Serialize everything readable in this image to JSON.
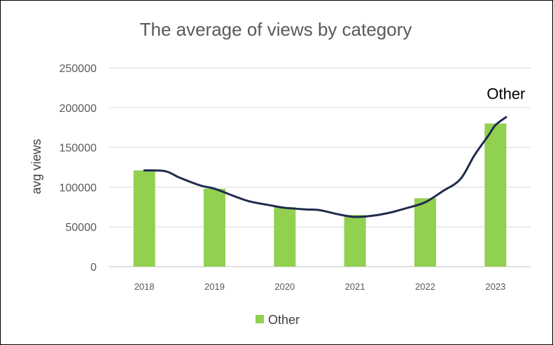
{
  "chart_data": {
    "type": "bar",
    "title": "The average of views by category",
    "ylabel": "avg views",
    "xlabel": "",
    "categories": [
      "2018",
      "2019",
      "2020",
      "2021",
      "2022",
      "2023"
    ],
    "series": [
      {
        "name": "Other",
        "values": [
          121000,
          98000,
          75000,
          65000,
          86000,
          180000
        ],
        "color": "#92D050"
      }
    ],
    "trend_line": {
      "color": "#1F2A4D",
      "x": [
        2018.0,
        2018.3,
        2018.5,
        2018.8,
        2019.0,
        2019.3,
        2019.5,
        2019.8,
        2020.0,
        2020.3,
        2020.5,
        2020.75,
        2021.0,
        2021.25,
        2021.5,
        2021.75,
        2022.0,
        2022.25,
        2022.5,
        2022.7,
        2022.9,
        2023.0,
        2023.15
      ],
      "y": [
        121000,
        120000,
        112000,
        102000,
        98000,
        88000,
        82000,
        77000,
        74000,
        72000,
        71000,
        66000,
        62500,
        64000,
        68000,
        74000,
        81000,
        95000,
        110000,
        140000,
        165000,
        178000,
        188000
      ]
    },
    "annotation": "Other",
    "yticks": [
      "0",
      "50000",
      "100000",
      "150000",
      "200000",
      "250000"
    ],
    "ylim": [
      0,
      250000
    ],
    "grid": true,
    "legend": {
      "position": "bottom",
      "entries": [
        "Other"
      ]
    }
  }
}
